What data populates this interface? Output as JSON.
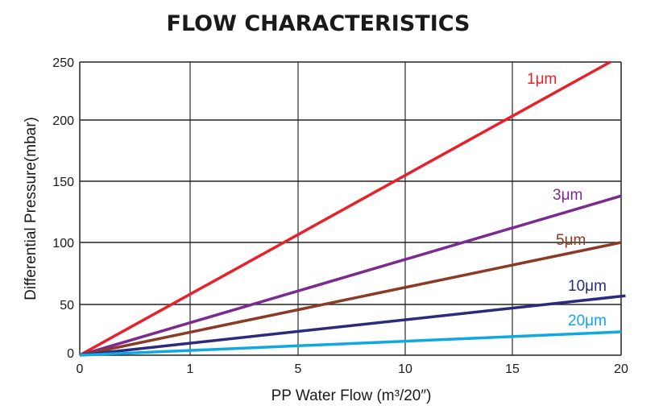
{
  "chart_data": {
    "type": "line",
    "title": "FLOW CHARACTERISTICS",
    "xlabel": "PP Water Flow (m³/20″)",
    "ylabel": "Differential Pressure(mbar)",
    "x_ticks": [
      0,
      1,
      5,
      10,
      15,
      20
    ],
    "y_ticks": [
      0,
      50,
      100,
      150,
      200,
      250
    ],
    "xlim": [
      0,
      20
    ],
    "ylim": [
      0,
      250
    ],
    "grid": true,
    "series": [
      {
        "name": "1μm",
        "color": "#e8202a",
        "points": [
          [
            0,
            0
          ],
          [
            19.5,
            250
          ]
        ]
      },
      {
        "name": "3μm",
        "color": "#7b2a90",
        "points": [
          [
            0,
            0
          ],
          [
            20,
            138
          ]
        ]
      },
      {
        "name": "5μm",
        "color": "#8b3a26",
        "points": [
          [
            0,
            0
          ],
          [
            20,
            100
          ]
        ]
      },
      {
        "name": "10μm",
        "color": "#2b2a7e",
        "points": [
          [
            0,
            0
          ],
          [
            20.2,
            57
          ]
        ]
      },
      {
        "name": "20μm",
        "color": "#10a8e0",
        "points": [
          [
            0,
            0
          ],
          [
            20,
            23
          ]
        ]
      }
    ]
  }
}
